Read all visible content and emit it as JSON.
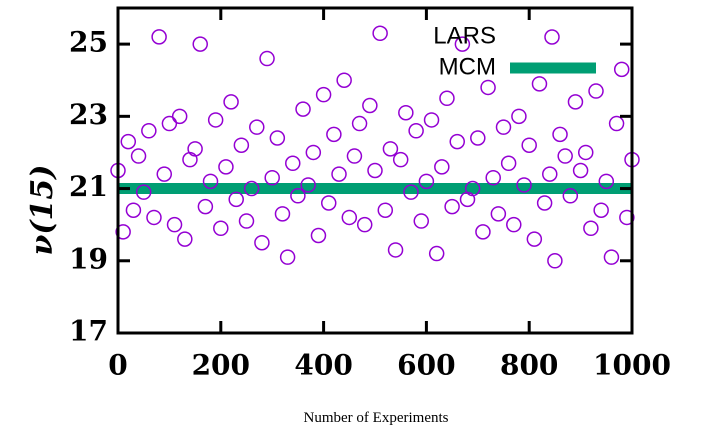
{
  "chart_data": {
    "type": "scatter",
    "x_label": "Number of Experiments",
    "y_label": "ν(15)",
    "xlim": [
      0,
      1000
    ],
    "xticks": [
      0,
      200,
      400,
      600,
      800,
      1000
    ],
    "ylim": [
      17,
      26
    ],
    "yticks": [
      17,
      19,
      21,
      23,
      25
    ],
    "legend": "top-right",
    "series": [
      {
        "name": "LARS",
        "color": "#9400d3",
        "marker": "circle",
        "x": [
          0,
          10,
          20,
          30,
          40,
          50,
          60,
          70,
          80,
          90,
          100,
          110,
          120,
          130,
          140,
          150,
          160,
          170,
          180,
          190,
          200,
          210,
          220,
          230,
          240,
          250,
          260,
          270,
          280,
          290,
          300,
          310,
          320,
          330,
          340,
          350,
          360,
          370,
          380,
          390,
          400,
          410,
          420,
          430,
          440,
          450,
          460,
          470,
          480,
          490,
          500,
          510,
          520,
          530,
          540,
          550,
          560,
          570,
          580,
          590,
          600,
          610,
          620,
          630,
          640,
          650,
          660,
          670,
          680,
          690,
          700,
          710,
          720,
          730,
          740,
          750,
          760,
          770,
          780,
          790,
          800,
          810,
          820,
          830,
          840,
          850,
          860,
          870,
          880,
          890,
          900,
          910,
          920,
          930,
          940,
          950,
          960,
          970,
          980,
          990,
          1000
        ],
        "values": [
          21.5,
          19.8,
          22.3,
          20.4,
          21.9,
          20.9,
          22.6,
          20.2,
          25.2,
          21.4,
          22.8,
          20.0,
          23.0,
          19.6,
          21.8,
          22.1,
          25.0,
          20.5,
          21.2,
          22.9,
          19.9,
          21.6,
          23.4,
          20.7,
          22.2,
          20.1,
          21.0,
          22.7,
          19.5,
          24.6,
          21.3,
          22.4,
          20.3,
          19.1,
          21.7,
          20.8,
          23.2,
          21.1,
          22.0,
          19.7,
          23.6,
          20.6,
          22.5,
          21.4,
          24.0,
          20.2,
          21.9,
          22.8,
          20.0,
          23.3,
          21.5,
          25.3,
          20.4,
          22.1,
          19.3,
          21.8,
          23.1,
          20.9,
          22.6,
          20.1,
          21.2,
          22.9,
          19.2,
          21.6,
          23.5,
          20.5,
          22.3,
          25.0,
          20.7,
          21.0,
          22.4,
          19.8,
          23.8,
          21.3,
          20.3,
          22.7,
          21.7,
          20.0,
          23.0,
          21.1,
          22.2,
          19.6,
          23.9,
          20.6,
          21.4,
          19.0,
          22.5,
          21.9,
          20.8,
          23.4,
          21.5,
          22.0,
          19.9,
          23.7,
          20.4,
          21.2,
          19.1,
          22.8,
          24.3,
          20.2,
          21.8
        ]
      },
      {
        "name": "MCM",
        "color": "#009e73",
        "marker": "line",
        "x": [
          0,
          1000
        ],
        "values": [
          21,
          21
        ]
      }
    ]
  }
}
